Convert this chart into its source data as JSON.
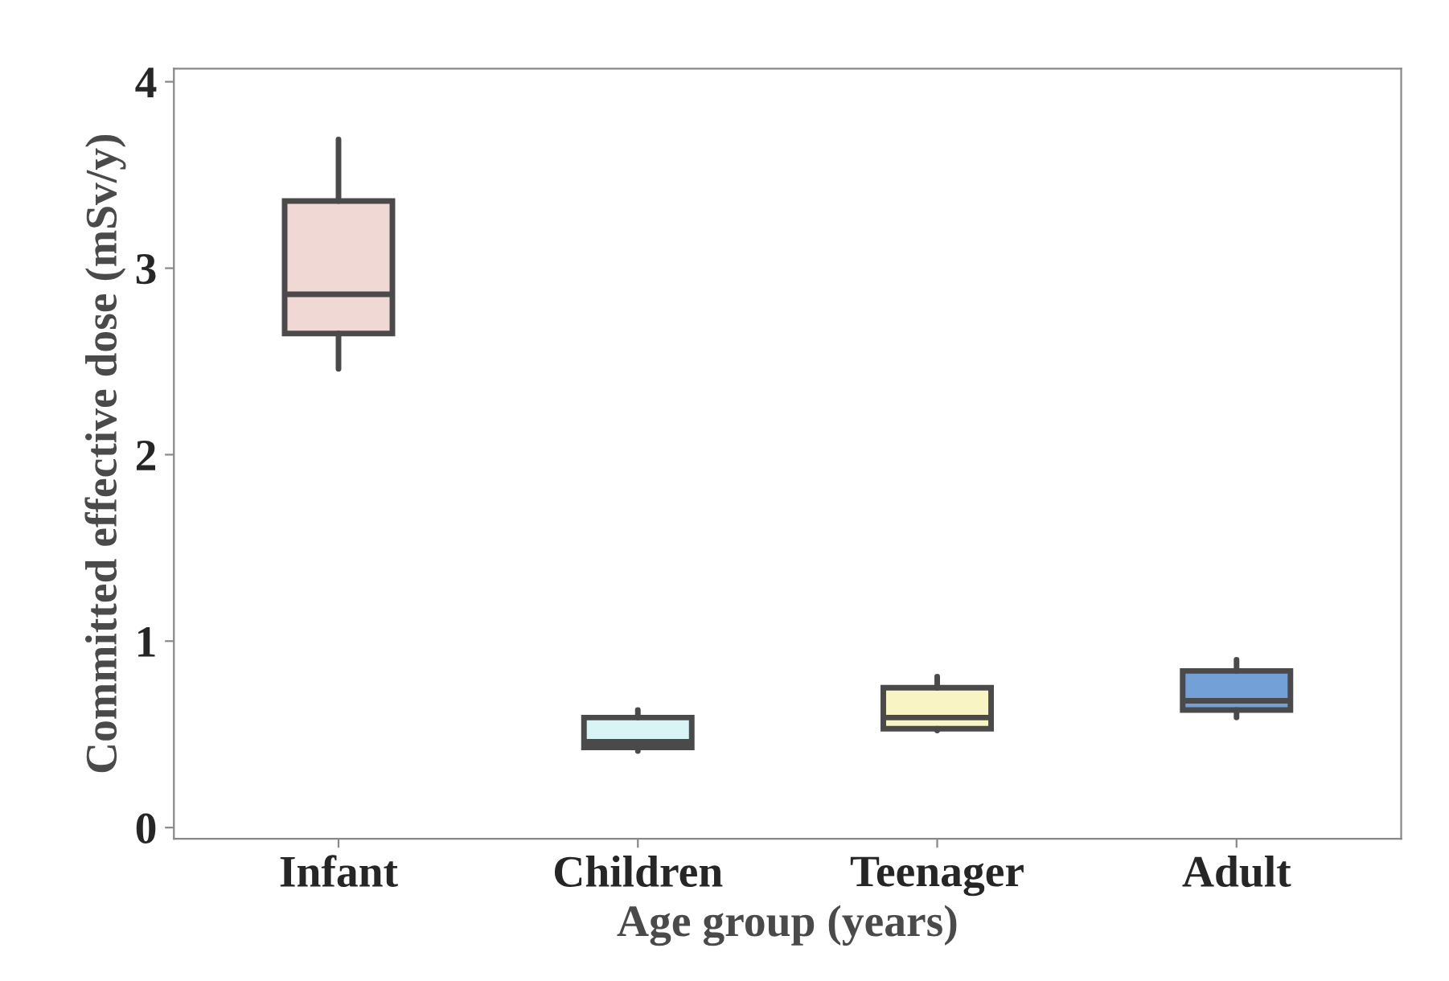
{
  "chart_data": {
    "type": "box",
    "xlabel": "Age group (years)",
    "ylabel": "Committed effective dose (mSv/y)",
    "categories": [
      "Infant",
      "Children",
      "Teenager",
      "Adult"
    ],
    "boxes": [
      {
        "low": 2.46,
        "q1": 2.65,
        "median": 2.86,
        "q3": 3.36,
        "high": 3.69
      },
      {
        "low": 0.41,
        "q1": 0.43,
        "median": 0.46,
        "q3": 0.59,
        "high": 0.63
      },
      {
        "low": 0.52,
        "q1": 0.53,
        "median": 0.59,
        "q3": 0.75,
        "high": 0.81
      },
      {
        "low": 0.59,
        "q1": 0.63,
        "median": 0.68,
        "q3": 0.84,
        "high": 0.9
      }
    ],
    "colors": [
      "#f0d8d4",
      "#d8f4f4",
      "#f8f4c4",
      "#74a0d8"
    ],
    "ylim": [
      -0.06,
      4.07
    ],
    "yticks": [
      0,
      1,
      2,
      3,
      4
    ],
    "grid": false,
    "legend": false
  }
}
